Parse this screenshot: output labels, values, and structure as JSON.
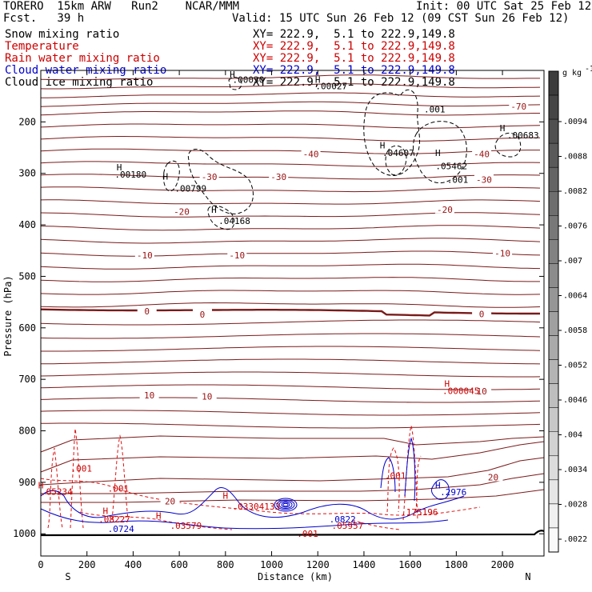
{
  "header": {
    "model": "TORERO  15km ARW   Run2    NCAR/MMM",
    "init": "Init: 00 UTC Sat 25 Feb 12",
    "fcst": "Fcst.   39 h",
    "valid": "Valid: 15 UTC Sun 26 Feb 12 (09 CST Sun 26 Feb 12)"
  },
  "fields": [
    {
      "name": "Snow mixing ratio",
      "xy": "XY= 222.9,  5.1 to 222.9,149.8",
      "color": "#000000"
    },
    {
      "name": "Temperature",
      "xy": "XY= 222.9,  5.1 to 222.9,149.8",
      "color": "#cc0000"
    },
    {
      "name": "Rain water mixing ratio",
      "xy": "XY= 222.9,  5.1 to 222.9,149.8",
      "color": "#cc0000"
    },
    {
      "name": "Cloud water mixing ratio",
      "xy": "XY= 222.9,  5.1 to 222.9,149.8",
      "color": "#0000cc"
    },
    {
      "name": "Cloud ice mixing ratio",
      "xy": "XY= 222.9,  5.1 to 222.9,149.8",
      "color": "#000000"
    }
  ],
  "chart_data": {
    "type": "cross-section",
    "xlabel": "Distance (km)",
    "ylabel": "Pressure (hPa)",
    "x_ticks": [
      0,
      200,
      400,
      600,
      800,
      1000,
      1200,
      1400,
      1600,
      1800,
      2000
    ],
    "y_ticks": [
      200,
      300,
      400,
      500,
      600,
      700,
      800,
      900,
      1000
    ],
    "xlim": [
      0,
      2180
    ],
    "ylim": [
      1050,
      100
    ],
    "left_end_label": "S",
    "right_end_label": "N",
    "temperature_labels": [
      {
        "text": "-70",
        "x": 2070,
        "p": 170
      },
      {
        "text": "-40",
        "x": 1170,
        "p": 262
      },
      {
        "text": "-40",
        "x": 1910,
        "p": 262
      },
      {
        "text": "-30",
        "x": 730,
        "p": 307
      },
      {
        "text": "-30",
        "x": 1030,
        "p": 307
      },
      {
        "text": "-30",
        "x": 1920,
        "p": 312
      },
      {
        "text": "-20",
        "x": 610,
        "p": 374
      },
      {
        "text": "-20",
        "x": 1750,
        "p": 370
      },
      {
        "text": "-10",
        "x": 450,
        "p": 459
      },
      {
        "text": "-10",
        "x": 850,
        "p": 459
      },
      {
        "text": "-10",
        "x": 2000,
        "p": 455
      },
      {
        "text": "0",
        "x": 460,
        "p": 568
      },
      {
        "text": "0",
        "x": 700,
        "p": 574
      },
      {
        "text": "0",
        "x": 1910,
        "p": 573
      },
      {
        "text": "10",
        "x": 470,
        "p": 731
      },
      {
        "text": "10",
        "x": 720,
        "p": 733
      },
      {
        "text": "10",
        "x": 1910,
        "p": 723
      },
      {
        "text": "20",
        "x": 560,
        "p": 937
      },
      {
        "text": "20",
        "x": 1960,
        "p": 890
      }
    ],
    "extrema": [
      {
        "text": ".00030",
        "x": 830,
        "p": 118,
        "h_x": 830,
        "h_p": 108,
        "color": "#000000"
      },
      {
        "text": ".00027",
        "x": 1190,
        "p": 130,
        "h_x": 1200,
        "h_p": 118,
        "color": "#000000"
      },
      {
        "text": ".001",
        "x": 1660,
        "p": 175,
        "color": "#000000"
      },
      {
        "text": ".00683",
        "x": 2020,
        "p": 226,
        "h_x": 2000,
        "h_p": 212,
        "color": "#000000"
      },
      {
        "text": ".04607",
        "x": 1480,
        "p": 260,
        "h_x": 1480,
        "h_p": 245,
        "color": "#000000"
      },
      {
        "text": ".05462",
        "x": 1710,
        "p": 286,
        "h_x": 1720,
        "h_p": 260,
        "color": "#000000"
      },
      {
        "text": ".001",
        "x": 1760,
        "p": 312,
        "color": "#000000"
      },
      {
        "text": ".00180",
        "x": 320,
        "p": 302,
        "h_x": 340,
        "h_p": 288,
        "color": "#000000"
      },
      {
        "text": ".00799",
        "x": 580,
        "p": 329,
        "h_x": 540,
        "h_p": 306,
        "color": "#000000"
      },
      {
        "text": ".04168",
        "x": 770,
        "p": 392,
        "h_x": 750,
        "h_p": 370,
        "color": "#000000"
      },
      {
        "text": ".000045",
        "x": 1740,
        "p": 722,
        "h_x": 1760,
        "h_p": 708,
        "color": "#cc0000"
      },
      {
        "text": ".001",
        "x": 130,
        "p": 873,
        "color": "#cc0000"
      },
      {
        "text": ".001",
        "x": 290,
        "p": 912,
        "color": "#cc0000"
      },
      {
        "text": ".001",
        "x": 1490,
        "p": 887,
        "color": "#cc0000"
      },
      {
        "text": ".05234",
        "x": 0,
        "p": 918,
        "h_x": 0,
        "h_p": 906,
        "color": "#cc0000"
      },
      {
        "text": ".03304133",
        "x": 830,
        "p": 947,
        "h_x": 800,
        "h_p": 926,
        "color": "#cc0000"
      },
      {
        "text": ".08227",
        "x": 250,
        "p": 972,
        "h_x": 280,
        "h_p": 955,
        "color": "#cc0000"
      },
      {
        "text": ".03579",
        "x": 560,
        "p": 984,
        "h_x": 510,
        "h_p": 965,
        "color": "#cc0000"
      },
      {
        "text": ".175196",
        "x": 1560,
        "p": 958,
        "color": "#cc0000"
      },
      {
        "text": ".05957",
        "x": 1260,
        "p": 984,
        "color": "#cc0000"
      },
      {
        "text": ".001",
        "x": 1110,
        "p": 1000,
        "color": "#cc0000"
      },
      {
        "text": ".0724",
        "x": 290,
        "p": 990,
        "color": "#0000cc"
      },
      {
        "text": ".0822",
        "x": 1250,
        "p": 972,
        "color": "#0000cc"
      },
      {
        "text": ".2976",
        "x": 1730,
        "p": 919,
        "h_x": 1720,
        "h_p": 906,
        "color": "#0000cc"
      }
    ],
    "colorbar": {
      "unit_label": "g kg",
      "unit_exp": "-1",
      "labels": [
        ".0094",
        ".0088",
        ".0082",
        ".0076",
        ".007",
        ".0064",
        ".0058",
        ".0052",
        ".0046",
        ".004",
        ".0034",
        ".0028",
        ".0022"
      ]
    }
  }
}
